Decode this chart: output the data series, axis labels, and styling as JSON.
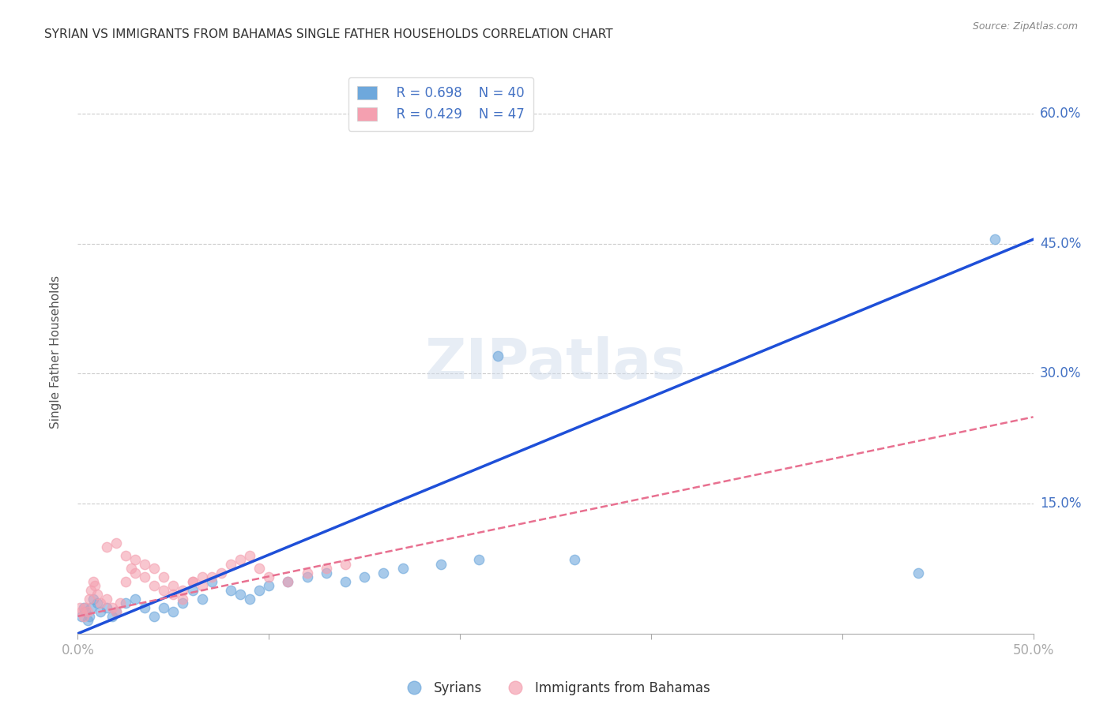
{
  "title": "SYRIAN VS IMMIGRANTS FROM BAHAMAS SINGLE FATHER HOUSEHOLDS CORRELATION CHART",
  "source": "Source: ZipAtlas.com",
  "ylabel": "Single Father Households",
  "xlabel": "",
  "xlim": [
    0.0,
    0.5
  ],
  "ylim": [
    0.0,
    0.65
  ],
  "xticks": [
    0.0,
    0.1,
    0.2,
    0.3,
    0.4,
    0.5
  ],
  "yticks": [
    0.0,
    0.15,
    0.3,
    0.45,
    0.6
  ],
  "watermark": "ZIPatlas",
  "legend_R1": "R = 0.698",
  "legend_N1": "N = 40",
  "legend_R2": "R = 0.429",
  "legend_N2": "N = 47",
  "blue_color": "#6EA8DC",
  "pink_color": "#F4A0B0",
  "line_blue": "#1E4FD8",
  "line_pink": "#E87090",
  "background_color": "#FFFFFF",
  "grid_color": "#CCCCCC",
  "title_color": "#333333",
  "axis_label_color": "#555555",
  "tick_color_right": "#4472C4",
  "syrians_x": [
    0.002,
    0.003,
    0.004,
    0.005,
    0.006,
    0.007,
    0.008,
    0.01,
    0.012,
    0.015,
    0.018,
    0.02,
    0.025,
    0.03,
    0.035,
    0.04,
    0.045,
    0.05,
    0.055,
    0.06,
    0.065,
    0.07,
    0.08,
    0.085,
    0.09,
    0.095,
    0.1,
    0.11,
    0.12,
    0.13,
    0.14,
    0.15,
    0.16,
    0.17,
    0.19,
    0.21,
    0.22,
    0.26,
    0.44,
    0.48
  ],
  "syrians_y": [
    0.02,
    0.03,
    0.025,
    0.015,
    0.02,
    0.03,
    0.04,
    0.035,
    0.025,
    0.03,
    0.02,
    0.025,
    0.035,
    0.04,
    0.03,
    0.02,
    0.03,
    0.025,
    0.035,
    0.05,
    0.04,
    0.06,
    0.05,
    0.045,
    0.04,
    0.05,
    0.055,
    0.06,
    0.065,
    0.07,
    0.06,
    0.065,
    0.07,
    0.075,
    0.08,
    0.085,
    0.32,
    0.085,
    0.07,
    0.455
  ],
  "bahamas_x": [
    0.001,
    0.002,
    0.003,
    0.004,
    0.005,
    0.006,
    0.007,
    0.008,
    0.009,
    0.01,
    0.012,
    0.015,
    0.018,
    0.02,
    0.022,
    0.025,
    0.028,
    0.03,
    0.035,
    0.04,
    0.045,
    0.05,
    0.055,
    0.06,
    0.065,
    0.07,
    0.075,
    0.08,
    0.085,
    0.09,
    0.095,
    0.1,
    0.11,
    0.12,
    0.13,
    0.14,
    0.015,
    0.02,
    0.025,
    0.03,
    0.035,
    0.04,
    0.045,
    0.05,
    0.055,
    0.06,
    0.065
  ],
  "bahamas_y": [
    0.03,
    0.025,
    0.02,
    0.03,
    0.025,
    0.04,
    0.05,
    0.06,
    0.055,
    0.045,
    0.035,
    0.04,
    0.03,
    0.025,
    0.035,
    0.06,
    0.075,
    0.07,
    0.065,
    0.055,
    0.05,
    0.045,
    0.04,
    0.06,
    0.055,
    0.065,
    0.07,
    0.08,
    0.085,
    0.09,
    0.075,
    0.065,
    0.06,
    0.07,
    0.075,
    0.08,
    0.1,
    0.105,
    0.09,
    0.085,
    0.08,
    0.075,
    0.065,
    0.055,
    0.05,
    0.06,
    0.065
  ],
  "blue_trendline_x": [
    0.0,
    0.5
  ],
  "blue_trendline_y": [
    0.0,
    0.455
  ],
  "pink_trendline_x": [
    0.0,
    0.5
  ],
  "pink_trendline_y": [
    0.02,
    0.25
  ]
}
